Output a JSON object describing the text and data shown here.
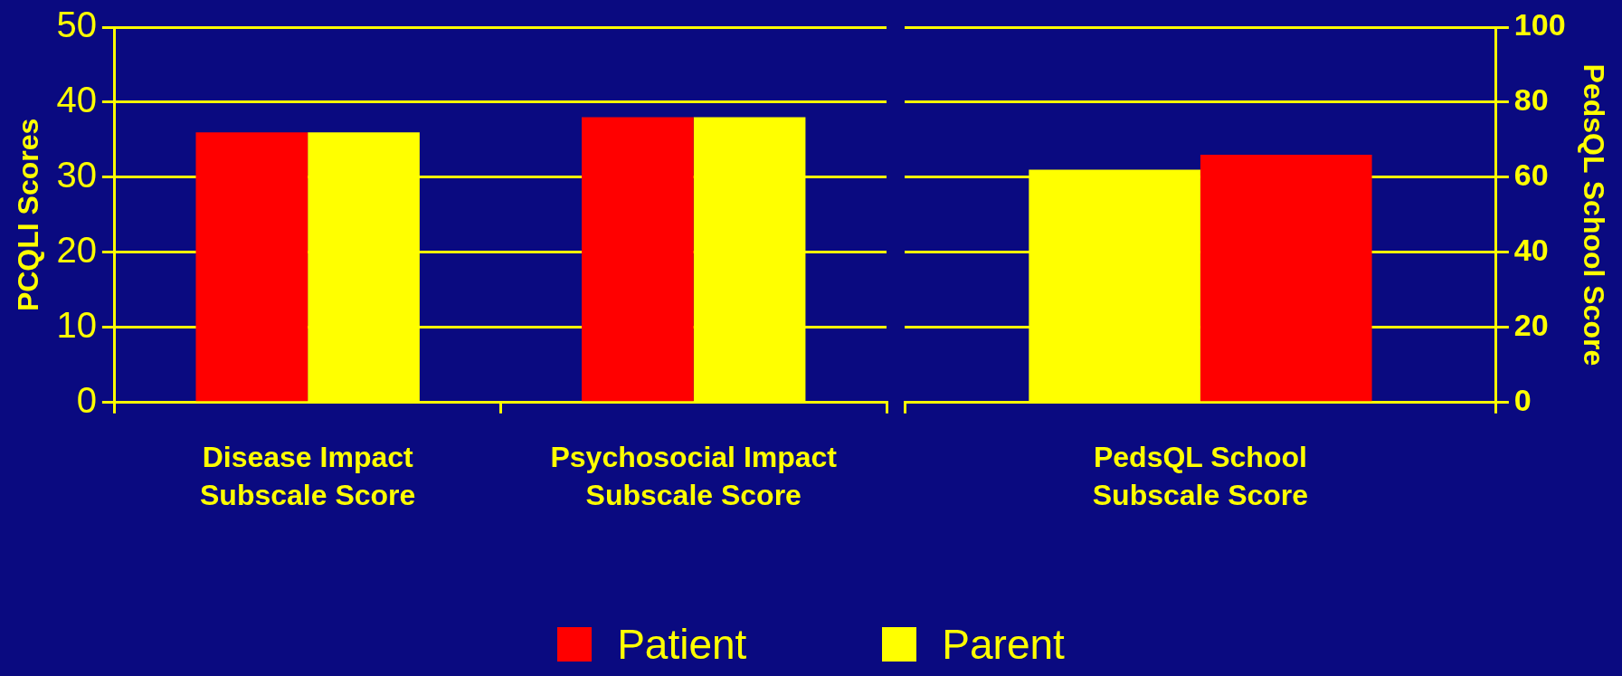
{
  "chart_data": [
    {
      "type": "bar",
      "categories": [
        "Disease Impact Subscale Score",
        "Psychosocial Impact Subscale Score"
      ],
      "ylabel": "PCQLI Scores",
      "ylim": [
        0,
        50
      ],
      "yticks": [
        0,
        10,
        20,
        30,
        40,
        50
      ],
      "grid": "y",
      "legend": "bottom",
      "series": [
        {
          "name": "Patient",
          "color": "#ff0000",
          "values": [
            36,
            38
          ]
        },
        {
          "name": "Parent",
          "color": "#ffff00",
          "values": [
            36,
            38
          ]
        }
      ]
    },
    {
      "type": "bar",
      "categories": [
        "PedsQL School Subscale Score"
      ],
      "y2label": "PedsQL School Score",
      "y2lim": [
        0,
        100
      ],
      "y2ticks": [
        0,
        20,
        40,
        60,
        80,
        100
      ],
      "grid": "y",
      "series": [
        {
          "color": "#ffff00",
          "values": [
            62
          ],
          "axis": "y2"
        },
        {
          "color": "#ff0000",
          "values": [
            66
          ],
          "axis": "y2"
        }
      ]
    }
  ]
}
